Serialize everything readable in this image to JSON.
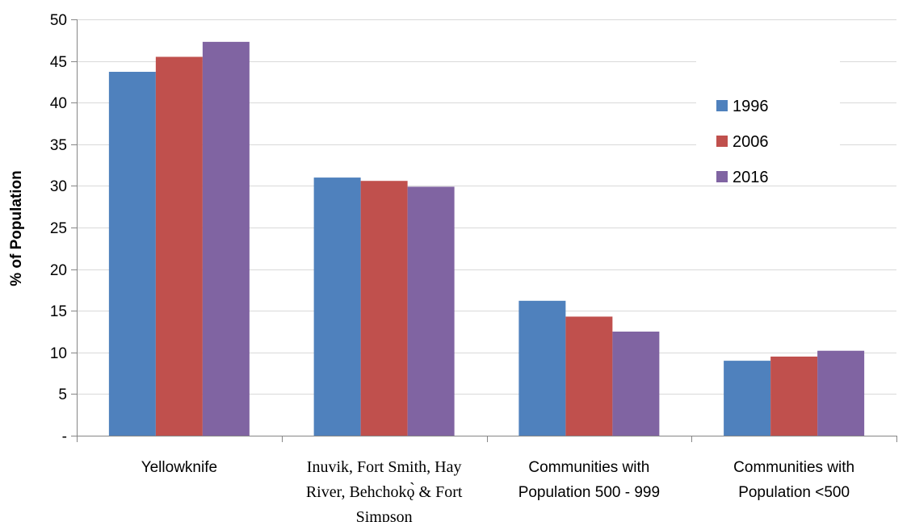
{
  "chart_data": {
    "type": "bar",
    "title": "",
    "xlabel": "",
    "ylabel": "% of Population",
    "ylim": [
      0,
      50
    ],
    "ytick_step": 5,
    "ytick_labels": [
      "-",
      "5",
      "10",
      "15",
      "20",
      "25",
      "30",
      "35",
      "40",
      "45",
      "50"
    ],
    "grid": true,
    "legend_position": "right",
    "categories": [
      [
        "Yellowknife"
      ],
      [
        "Inuvik, Fort Smith, Hay",
        "River, Behchokǫ̀ & Fort",
        "Simpson"
      ],
      [
        "Communities with",
        "Population 500 - 999"
      ],
      [
        "Communities with",
        "Population <500"
      ]
    ],
    "category_fonts": [
      "sans",
      "serif",
      "sans",
      "sans"
    ],
    "series": [
      {
        "name": "1996",
        "color": "#4F81BD",
        "values": [
          43.7,
          31.0,
          16.2,
          9.0
        ]
      },
      {
        "name": "2006",
        "color": "#C0504D",
        "values": [
          45.5,
          30.6,
          14.3,
          9.5
        ]
      },
      {
        "name": "2016",
        "color": "#8064A2",
        "values": [
          47.3,
          29.9,
          12.5,
          10.2
        ]
      }
    ]
  }
}
